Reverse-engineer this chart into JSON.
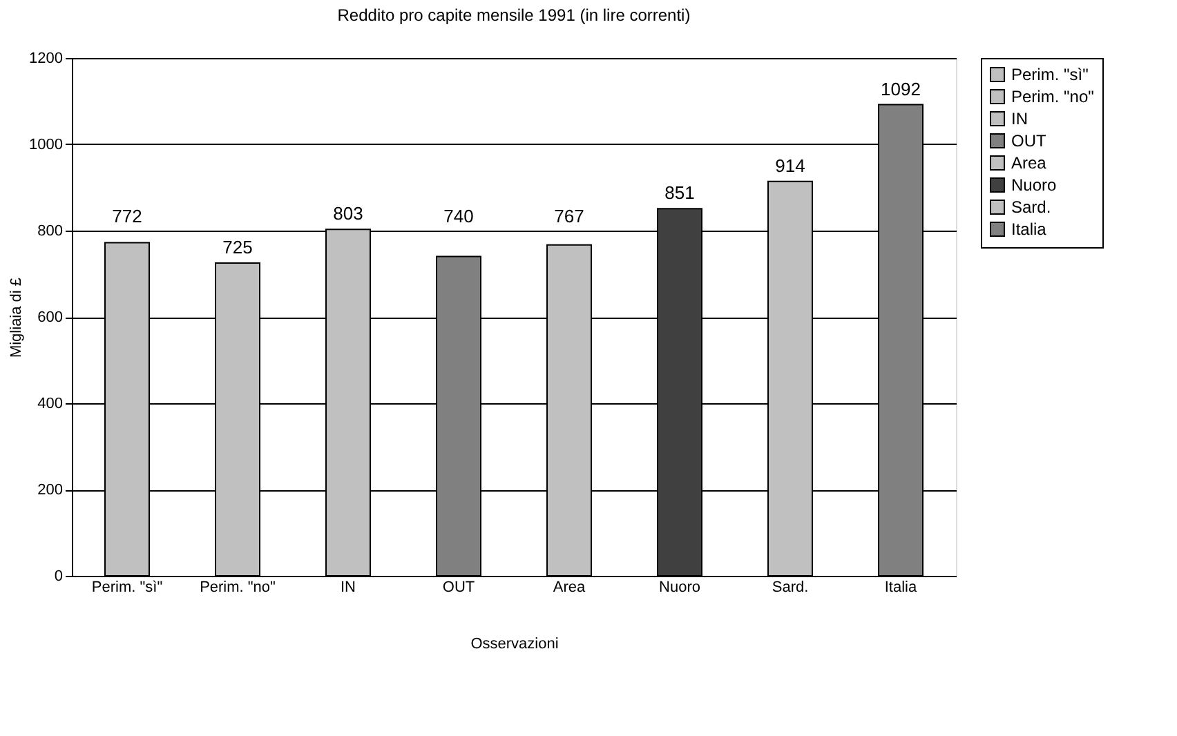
{
  "chart_data": {
    "type": "bar",
    "title": "Reddito pro capite mensile 1991 (in lire correnti)",
    "xlabel": "Osservazioni",
    "ylabel": "Migliaia di £",
    "categories": [
      "Perim. \"sì\"",
      "Perim. \"no\"",
      "IN",
      "OUT",
      "Area",
      "Nuoro",
      "Sard.",
      "Italia"
    ],
    "series": [
      {
        "name": "Perim. \"sì\"",
        "color": "#c0c0c0",
        "values": [
          772,
          null,
          null,
          null,
          null,
          null,
          null,
          null
        ]
      },
      {
        "name": "Perim. \"no\"",
        "color": "#c0c0c0",
        "values": [
          null,
          725,
          null,
          null,
          null,
          null,
          null,
          null
        ]
      },
      {
        "name": "IN",
        "color": "#c0c0c0",
        "values": [
          null,
          null,
          803,
          null,
          null,
          null,
          null,
          null
        ]
      },
      {
        "name": "OUT",
        "color": "#808080",
        "values": [
          null,
          null,
          null,
          740,
          null,
          null,
          null,
          null
        ]
      },
      {
        "name": "Area",
        "color": "#c0c0c0",
        "values": [
          null,
          null,
          null,
          null,
          767,
          null,
          null,
          null
        ]
      },
      {
        "name": "Nuoro",
        "color": "#404040",
        "values": [
          null,
          null,
          null,
          null,
          null,
          851,
          null,
          null
        ]
      },
      {
        "name": "Sard.",
        "color": "#c0c0c0",
        "values": [
          null,
          null,
          null,
          null,
          null,
          null,
          914,
          null
        ]
      },
      {
        "name": "Italia",
        "color": "#808080",
        "values": [
          null,
          null,
          null,
          null,
          null,
          null,
          null,
          1092
        ]
      }
    ],
    "ylim": [
      0,
      1200
    ],
    "yticks": [
      0,
      200,
      400,
      600,
      800,
      1000,
      1200
    ],
    "grid": "y",
    "legend": "right",
    "data_labels": true
  }
}
